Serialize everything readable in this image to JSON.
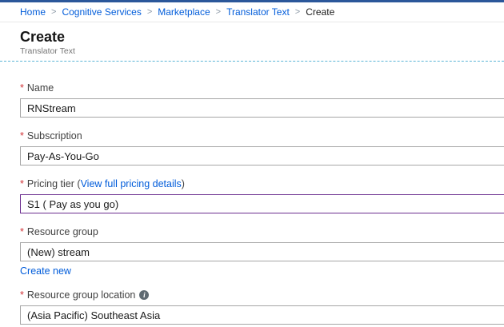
{
  "colors": {
    "topbar": "#2b579a",
    "link": "#015cda",
    "divider_dashed": "#5ab4d6",
    "highlight_border": "#6b2d8f",
    "required_red": "#d13438",
    "input_border": "#a6a6a6"
  },
  "breadcrumb": {
    "separator": ">",
    "items": [
      {
        "label": "Home"
      },
      {
        "label": "Cognitive Services"
      },
      {
        "label": "Marketplace"
      },
      {
        "label": "Translator Text"
      },
      {
        "label": "Create"
      }
    ]
  },
  "header": {
    "title": "Create",
    "subtitle": "Translator Text"
  },
  "form": {
    "required_marker": "*",
    "name": {
      "label": "Name",
      "value": "RNStream"
    },
    "subscription": {
      "label": "Subscription",
      "value": "Pay-As-You-Go"
    },
    "pricing": {
      "label_prefix": "Pricing tier (",
      "link": "View full pricing details",
      "label_suffix": ")",
      "value": "S1 ( Pay as you go)"
    },
    "resource_group": {
      "label": "Resource group",
      "value": "(New) stream",
      "action": "Create new"
    },
    "location": {
      "label": "Resource group location",
      "info_icon": "i",
      "value": "(Asia Pacific) Southeast Asia"
    }
  }
}
